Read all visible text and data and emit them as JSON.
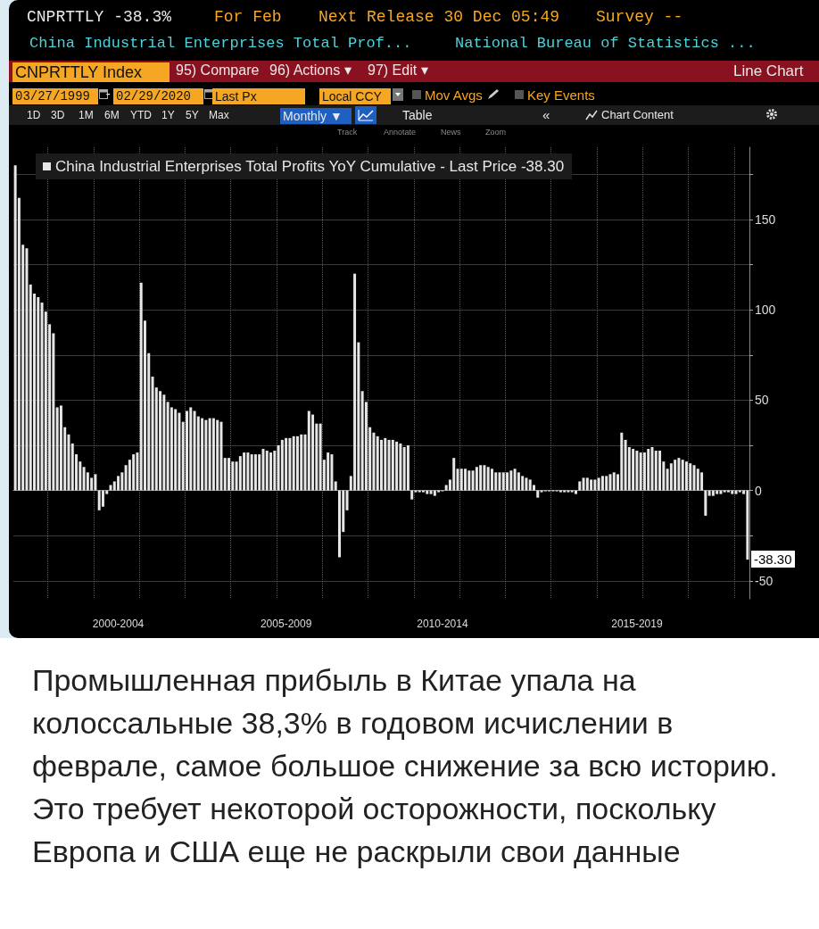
{
  "chart_data": {
    "type": "bar",
    "categories": [
      null,
      null,
      null,
      null,
      null,
      null,
      null,
      null,
      null,
      null,
      null,
      null,
      null,
      null,
      null,
      null,
      null,
      null,
      null,
      null,
      null,
      null,
      null,
      null,
      null,
      null,
      null,
      "2000-2004",
      null,
      null,
      null,
      null,
      null,
      null,
      null,
      null,
      null,
      null,
      null,
      null,
      null,
      null,
      null,
      null,
      null,
      null,
      null,
      null,
      null,
      null,
      null,
      null,
      null,
      null,
      null,
      null,
      null,
      null,
      null,
      null,
      null,
      null,
      null,
      null,
      null,
      null,
      null,
      null,
      null,
      null,
      null,
      "2005-2009",
      null,
      null,
      null,
      null,
      null,
      null,
      null,
      null,
      null,
      null,
      null,
      null,
      null,
      null,
      null,
      null,
      null,
      null,
      null,
      null,
      null,
      null,
      null,
      null,
      null,
      null,
      null,
      null,
      null,
      null,
      null,
      null,
      null,
      null,
      null,
      null,
      null,
      null,
      null,
      null,
      "2010-2014",
      null,
      null,
      null,
      null,
      null,
      null,
      null,
      null,
      null,
      null,
      null,
      null,
      null,
      null,
      null,
      null,
      null,
      null,
      null,
      null,
      null,
      null,
      null,
      null,
      null,
      null,
      null,
      null,
      null,
      null,
      null,
      null,
      null,
      null,
      null,
      null,
      null,
      null,
      null,
      null,
      null,
      null,
      null,
      null,
      null,
      null,
      null,
      null,
      null,
      null,
      "2015-2019",
      null,
      null,
      null,
      null,
      null,
      null,
      null,
      null,
      null,
      null,
      null,
      null,
      null,
      null,
      null,
      null,
      null,
      null,
      null,
      null,
      null,
      null,
      null,
      null,
      null,
      null,
      null,
      null,
      null
    ],
    "series": [
      {
        "name": "China Industrial Enterprises Total Profits YoY Cumulative - Last Price -38.30",
        "color": "#e6e6e6",
        "values": [
          180,
          162,
          136,
          134,
          114,
          109,
          107,
          104,
          99,
          92,
          87,
          46,
          47,
          35,
          31,
          26,
          20,
          16,
          13,
          10,
          7,
          9,
          -11,
          -9,
          -2,
          3,
          5,
          8,
          10,
          14,
          17,
          20,
          21,
          115,
          94,
          76,
          63,
          57,
          55,
          53,
          49,
          46,
          45,
          43,
          38,
          44,
          46,
          44,
          41,
          40,
          39,
          40,
          40,
          39,
          38,
          18,
          18,
          16,
          16,
          19,
          21,
          21,
          20,
          20,
          20,
          23,
          22,
          21,
          22,
          25,
          28,
          29,
          29,
          30,
          30,
          31,
          31,
          44,
          42,
          37,
          37,
          17,
          21,
          20,
          5,
          -37,
          -23,
          -11,
          8,
          120,
          82,
          55,
          49,
          35,
          32,
          30,
          28,
          29,
          28,
          28,
          27,
          26,
          24,
          25,
          -5,
          -1,
          -1,
          -1,
          -2,
          -2,
          -3,
          -1,
          -0.5,
          3,
          6,
          18,
          12,
          12,
          12,
          11,
          11,
          13,
          14,
          14,
          13,
          12,
          10,
          10,
          10,
          10,
          11,
          12,
          10,
          8,
          7,
          6,
          3,
          -4,
          -1,
          -0.5,
          -0.5,
          -0.5,
          -0.5,
          -1,
          -1,
          -1,
          -1,
          -2,
          5,
          7,
          7,
          6,
          6,
          7,
          8,
          8,
          9,
          10,
          9,
          32,
          28,
          24,
          23,
          22,
          21,
          21,
          23,
          24,
          22,
          22,
          16,
          12,
          15,
          17,
          18,
          17,
          16,
          15,
          14,
          12,
          10,
          -14,
          -3,
          -3,
          -2,
          -2,
          -1,
          -1,
          -2,
          -2,
          -1,
          -2,
          -38.3
        ]
      }
    ],
    "ylim": [
      -60,
      190
    ],
    "yticks": [
      -50,
      {
        "value": -25,
        "label": null
      },
      0,
      {
        "value": 25,
        "label": null
      },
      50,
      {
        "value": 75,
        "label": null
      },
      100,
      {
        "value": 125,
        "label": null
      },
      150,
      {
        "value": 175,
        "label": null
      }
    ],
    "grid": true,
    "legend": "top left",
    "annotations": [
      "CNPRTTLY -38.3%",
      "For Feb",
      "Next Release 30 Dec 05:49",
      "Survey --",
      "China Industrial Enterprises Total Prof...",
      "National Bureau of Statistics ...",
      "CNPRTTLY Index",
      "95) Compare",
      "96) Actions ▾",
      "97) Edit ▾",
      "Line Chart",
      "03/27/1999",
      "-",
      "02/29/2020",
      "Last Px",
      "Local CCY",
      "Mov Avgs",
      "Key Events",
      "1D",
      "3D",
      "1M",
      "6M",
      "YTD",
      "1Y",
      "5Y",
      "Max",
      "Monthly ▼",
      "Table",
      "«",
      "Chart Content",
      "Track",
      "Annotate",
      "News",
      "Zoom",
      "-38.30",
      "Промышленная прибыль в Китае упала на колоссальные 38,3% в годовом исчислении в феврале, самое большое снижение за всю историю. Это требует некоторой осторожности, поскольку Европа и США еще не раскрыли свои данные"
    ]
  }
}
